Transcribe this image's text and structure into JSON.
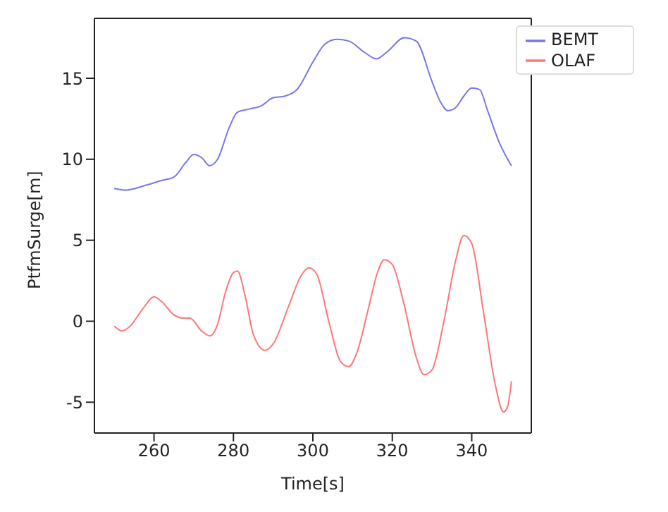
{
  "chart_data": {
    "type": "line",
    "xlabel": "Time[s]",
    "ylabel": "PtfmSurge[m]",
    "xlim": [
      245,
      355
    ],
    "ylim": [
      -6.9,
      18.7
    ],
    "xticks": [
      260,
      280,
      300,
      320,
      340
    ],
    "yticks": [
      -5,
      0,
      5,
      10,
      15
    ],
    "grid": false,
    "legend": "top right",
    "series": [
      {
        "name": "BEMT",
        "color": "#7777ee",
        "x": [
          250,
          253,
          258,
          262,
          265,
          268,
          270,
          272,
          274,
          276,
          279,
          281,
          284,
          287,
          290,
          293,
          296,
          300,
          303,
          306,
          309,
          313,
          316,
          319,
          323,
          326,
          330,
          332,
          334,
          336,
          338,
          340,
          342,
          344,
          347,
          350
        ],
        "values": [
          8.2,
          8.1,
          8.4,
          8.7,
          8.9,
          9.8,
          10.3,
          10.1,
          9.6,
          10.0,
          12.0,
          12.9,
          13.1,
          13.3,
          13.8,
          13.9,
          14.3,
          16.0,
          17.1,
          17.4,
          17.3,
          16.6,
          16.2,
          16.7,
          17.5,
          17.3,
          14.8,
          13.6,
          13.0,
          13.2,
          13.9,
          14.4,
          14.3,
          13.0,
          11.0,
          9.6
        ]
      },
      {
        "name": "OLAF",
        "color": "#ff7777",
        "x": [
          250,
          252,
          254,
          257,
          260,
          262,
          265,
          267,
          269,
          272,
          274,
          276,
          278,
          280,
          281,
          283,
          285,
          288,
          290,
          294,
          297,
          299,
          301,
          304,
          307,
          309,
          311,
          314,
          316,
          318,
          320,
          323,
          326,
          328,
          330,
          333,
          336,
          338,
          340,
          343,
          346,
          348,
          349,
          350
        ],
        "values": [
          -0.3,
          -0.6,
          -0.3,
          0.7,
          1.5,
          1.2,
          0.4,
          0.2,
          0.2,
          -0.6,
          -0.9,
          -0.2,
          1.8,
          3.0,
          3.1,
          1.5,
          -0.8,
          -1.8,
          -1.4,
          1.0,
          2.8,
          3.3,
          2.9,
          0.0,
          -2.5,
          -2.8,
          -2.0,
          0.8,
          2.8,
          3.8,
          3.5,
          1.0,
          -2.2,
          -3.3,
          -3.0,
          0.0,
          3.8,
          5.3,
          4.8,
          0.5,
          -4.0,
          -5.6,
          -5.3,
          -3.7
        ]
      }
    ]
  }
}
